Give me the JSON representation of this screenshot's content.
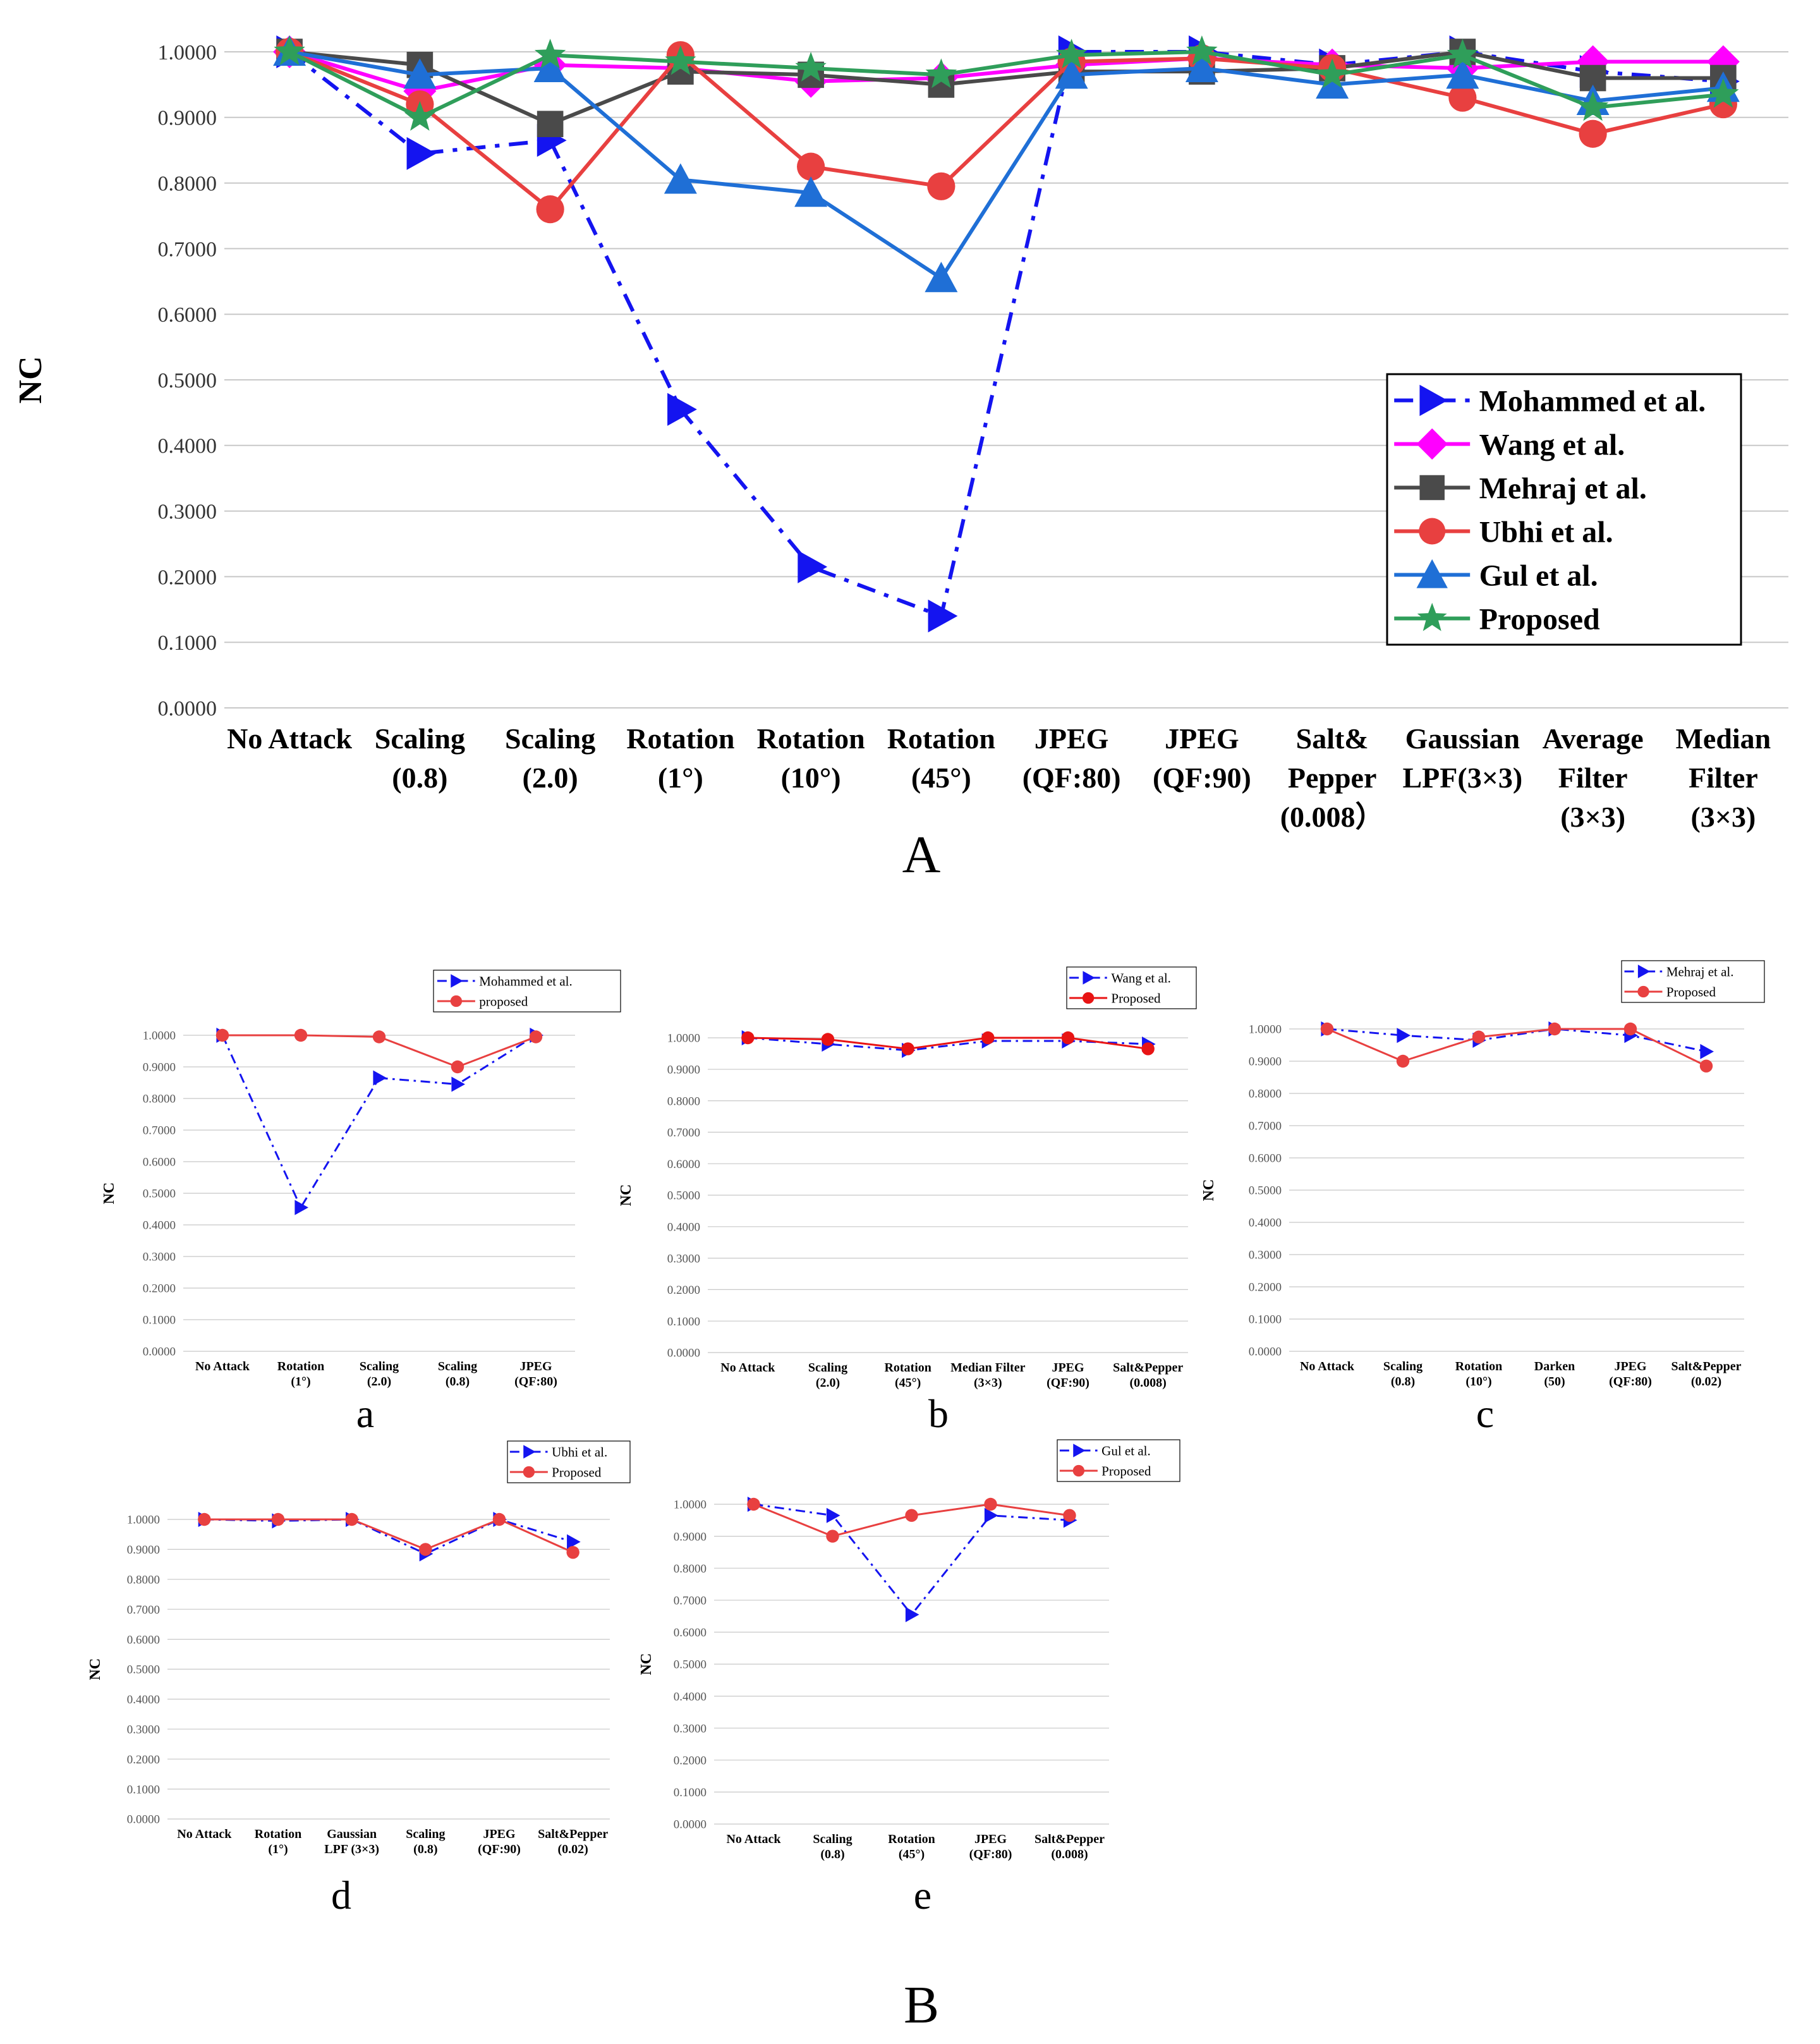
{
  "figure": {
    "main_label": "A",
    "group_label": "B"
  },
  "chart_data": [
    {
      "id": "main",
      "type": "line",
      "panel_label": "A",
      "ylabel": "NC",
      "ylim": [
        0,
        1
      ],
      "yticks": [
        "0.0000",
        "0.1000",
        "0.2000",
        "0.3000",
        "0.4000",
        "0.5000",
        "0.6000",
        "0.7000",
        "0.8000",
        "0.9000",
        "1.0000"
      ],
      "grid": true,
      "legend_position": "right",
      "categories": [
        [
          "No Attack"
        ],
        [
          "Scaling",
          "(0.8)"
        ],
        [
          "Scaling",
          "(2.0)"
        ],
        [
          "Rotation",
          "(1°)"
        ],
        [
          "Rotation",
          "(10°)"
        ],
        [
          "Rotation",
          "(45°)"
        ],
        [
          "JPEG",
          "(QF:80)"
        ],
        [
          "JPEG",
          "(QF:90)"
        ],
        [
          "Salt&",
          "Pepper",
          "(0.008）"
        ],
        [
          "Gaussian",
          "LPF(3×3)"
        ],
        [
          "Average",
          "Filter",
          "(3×3)"
        ],
        [
          "Median",
          "Filter",
          "(3×3)"
        ]
      ],
      "series": [
        {
          "name": "Mohammed et al.",
          "color": "#1414f0",
          "marker": "triangle-right",
          "dash": "dashdot",
          "values": [
            1.0,
            0.845,
            0.865,
            0.455,
            0.215,
            0.14,
            1.0,
            1.0,
            0.98,
            1.0,
            0.97,
            0.955
          ]
        },
        {
          "name": "Wang et al.",
          "color": "#ff00ff",
          "marker": "diamond",
          "dash": "solid",
          "values": [
            1.0,
            0.94,
            0.98,
            0.975,
            0.955,
            0.96,
            0.98,
            0.99,
            0.98,
            0.975,
            0.985,
            0.985
          ]
        },
        {
          "name": "Mehraj et al.",
          "color": "#4a4a4a",
          "marker": "square",
          "dash": "solid",
          "values": [
            1.0,
            0.98,
            0.89,
            0.97,
            0.965,
            0.95,
            0.97,
            0.97,
            0.975,
            1.0,
            0.96,
            0.96
          ]
        },
        {
          "name": "Ubhi et al.",
          "color": "#e84040",
          "marker": "circle",
          "dash": "solid",
          "values": [
            1.0,
            0.92,
            0.76,
            0.995,
            0.825,
            0.795,
            0.985,
            0.99,
            0.975,
            0.93,
            0.875,
            0.92
          ]
        },
        {
          "name": "Gul et al.",
          "color": "#1f6fd6",
          "marker": "triangle-up",
          "dash": "solid",
          "values": [
            1.0,
            0.965,
            0.975,
            0.805,
            0.785,
            0.655,
            0.965,
            0.975,
            0.95,
            0.965,
            0.925,
            0.945
          ]
        },
        {
          "name": "Proposed",
          "color": "#2f9e5a",
          "marker": "star",
          "dash": "solid",
          "values": [
            1.0,
            0.9,
            0.995,
            0.985,
            0.975,
            0.965,
            0.995,
            1.0,
            0.965,
            0.995,
            0.915,
            0.935
          ]
        }
      ]
    },
    {
      "id": "a",
      "type": "line",
      "panel_label": "a",
      "ylabel": "NC",
      "ylim": [
        0,
        1
      ],
      "yticks": [
        "0.0000",
        "0.1000",
        "0.2000",
        "0.3000",
        "0.4000",
        "0.5000",
        "0.6000",
        "0.7000",
        "0.8000",
        "0.9000",
        "1.0000"
      ],
      "legend_position": "top-right",
      "categories": [
        [
          "No Attack"
        ],
        [
          "Rotation",
          "(1°)"
        ],
        [
          "Scaling",
          "(2.0)"
        ],
        [
          "Scaling",
          "(0.8)"
        ],
        [
          "JPEG",
          "(QF:80)"
        ]
      ],
      "series": [
        {
          "name": "Mohammed et al.",
          "color": "#1414f0",
          "marker": "triangle-right",
          "dash": "dashdot",
          "values": [
            1.0,
            0.455,
            0.865,
            0.845,
            1.0
          ]
        },
        {
          "name": "proposed",
          "color": "#e84040",
          "marker": "circle",
          "dash": "solid",
          "values": [
            1.0,
            1.0,
            0.995,
            0.9,
            0.995
          ]
        }
      ]
    },
    {
      "id": "b",
      "type": "line",
      "panel_label": "b",
      "ylabel": "NC",
      "ylim": [
        0,
        1
      ],
      "yticks": [
        "0.0000",
        "0.1000",
        "0.2000",
        "0.3000",
        "0.4000",
        "0.5000",
        "0.6000",
        "0.7000",
        "0.8000",
        "0.9000",
        "1.0000"
      ],
      "legend_position": "top-right",
      "categories": [
        [
          "No Attack"
        ],
        [
          "Scaling",
          "(2.0)"
        ],
        [
          "Rotation",
          "(45°)"
        ],
        [
          "Median Filter",
          "(3×3)"
        ],
        [
          "JPEG",
          "(QF:90)"
        ],
        [
          "Salt&Pepper",
          "(0.008)"
        ]
      ],
      "series": [
        {
          "name": "Wang et al.",
          "color": "#1414f0",
          "marker": "triangle-right",
          "dash": "dashdot",
          "values": [
            1.0,
            0.98,
            0.96,
            0.99,
            0.99,
            0.98
          ]
        },
        {
          "name": "Proposed",
          "color": "#e81414",
          "marker": "circle",
          "dash": "solid",
          "values": [
            1.0,
            0.995,
            0.965,
            1.0,
            1.0,
            0.965
          ]
        }
      ]
    },
    {
      "id": "c",
      "type": "line",
      "panel_label": "c",
      "ylabel": "NC",
      "ylim": [
        0,
        1
      ],
      "yticks": [
        "0.0000",
        "0.1000",
        "0.2000",
        "0.3000",
        "0.4000",
        "0.5000",
        "0.6000",
        "0.7000",
        "0.8000",
        "0.9000",
        "1.0000"
      ],
      "legend_position": "top-right",
      "categories": [
        [
          "No Attack"
        ],
        [
          "Scaling",
          "(0.8)"
        ],
        [
          "Rotation",
          "(10°)"
        ],
        [
          "Darken",
          "(50)"
        ],
        [
          "JPEG",
          "(QF:80)"
        ],
        [
          "Salt&Pepper",
          "(0.02)"
        ]
      ],
      "series": [
        {
          "name": "Mehraj et al.",
          "color": "#1414f0",
          "marker": "triangle-right",
          "dash": "dashdot",
          "values": [
            1.0,
            0.98,
            0.965,
            1.0,
            0.98,
            0.93
          ]
        },
        {
          "name": "Proposed",
          "color": "#e84040",
          "marker": "circle",
          "dash": "solid",
          "values": [
            1.0,
            0.9,
            0.975,
            1.0,
            1.0,
            0.885
          ]
        }
      ]
    },
    {
      "id": "d",
      "type": "line",
      "panel_label": "d",
      "ylabel": "NC",
      "ylim": [
        0,
        1
      ],
      "yticks": [
        "0.0000",
        "0.1000",
        "0.2000",
        "0.3000",
        "0.4000",
        "0.5000",
        "0.6000",
        "0.7000",
        "0.8000",
        "0.9000",
        "1.0000"
      ],
      "legend_position": "top-right",
      "categories": [
        [
          "No Attack"
        ],
        [
          "Rotation",
          "(1°)"
        ],
        [
          "Gaussian",
          "LPF (3×3)"
        ],
        [
          "Scaling",
          "(0.8)"
        ],
        [
          "JPEG",
          "(QF:90)"
        ],
        [
          "Salt&Pepper",
          "(0.02)"
        ]
      ],
      "series": [
        {
          "name": "Ubhi et al.",
          "color": "#1414f0",
          "marker": "triangle-right",
          "dash": "dashdot",
          "values": [
            1.0,
            0.995,
            1.0,
            0.885,
            1.0,
            0.925
          ]
        },
        {
          "name": "Proposed",
          "color": "#e84040",
          "marker": "circle",
          "dash": "solid",
          "values": [
            1.0,
            1.0,
            1.0,
            0.9,
            1.0,
            0.89
          ]
        }
      ]
    },
    {
      "id": "e",
      "type": "line",
      "panel_label": "e",
      "ylabel": "NC",
      "ylim": [
        0,
        1
      ],
      "yticks": [
        "0.0000",
        "0.1000",
        "0.2000",
        "0.3000",
        "0.4000",
        "0.5000",
        "0.6000",
        "0.7000",
        "0.8000",
        "0.9000",
        "1.0000"
      ],
      "legend_position": "top-right",
      "categories": [
        [
          "No Attack"
        ],
        [
          "Scaling",
          "(0.8)"
        ],
        [
          "Rotation",
          "(45°)"
        ],
        [
          "JPEG",
          "(QF:80)"
        ],
        [
          "Salt&Pepper",
          "(0.008)"
        ]
      ],
      "series": [
        {
          "name": "Gul et al.",
          "color": "#1414f0",
          "marker": "triangle-right",
          "dash": "dashdot",
          "values": [
            1.0,
            0.965,
            0.655,
            0.965,
            0.95
          ]
        },
        {
          "name": "Proposed",
          "color": "#e84040",
          "marker": "circle",
          "dash": "solid",
          "values": [
            1.0,
            0.9,
            0.965,
            1.0,
            0.965
          ]
        }
      ]
    }
  ]
}
